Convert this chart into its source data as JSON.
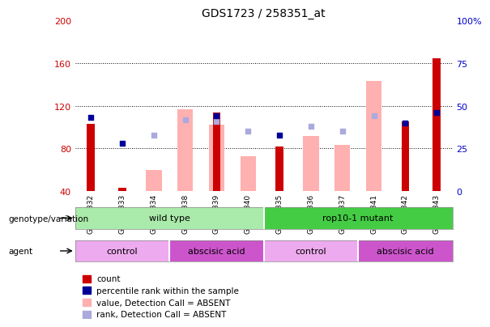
{
  "title": "GDS1723 / 258351_at",
  "samples": [
    "GSM78332",
    "GSM78333",
    "GSM78334",
    "GSM78338",
    "GSM78339",
    "GSM78340",
    "GSM78335",
    "GSM78336",
    "GSM78337",
    "GSM78341",
    "GSM78342",
    "GSM78343"
  ],
  "count": [
    103,
    43,
    null,
    null,
    114,
    null,
    82,
    null,
    null,
    null,
    105,
    165
  ],
  "percentile_rank": [
    43,
    28,
    null,
    null,
    44,
    null,
    33,
    null,
    null,
    null,
    40,
    46
  ],
  "absent_value": [
    null,
    null,
    60,
    117,
    102,
    73,
    null,
    92,
    83,
    143,
    null,
    null
  ],
  "absent_rank": [
    null,
    null,
    33,
    42,
    41,
    35,
    null,
    38,
    35,
    44,
    null,
    null
  ],
  "ylim_left": [
    40,
    200
  ],
  "ylim_right": [
    0,
    100
  ],
  "yticks_left": [
    40,
    80,
    120,
    160,
    200
  ],
  "yticks_right": [
    0,
    25,
    50,
    75,
    100
  ],
  "bar_color_count": "#cc0000",
  "bar_color_absent_value": "#ffb0b0",
  "dot_color_rank": "#000099",
  "dot_color_absent_rank": "#aaaadd",
  "ylabel_left_color": "#cc0000",
  "ylabel_right_color": "#0000cc",
  "genotype_groups": [
    {
      "label": "wild type",
      "start": 0,
      "end": 6,
      "color": "#aaeaaa"
    },
    {
      "label": "rop10-1 mutant",
      "start": 6,
      "end": 12,
      "color": "#44cc44"
    }
  ],
  "agent_groups": [
    {
      "label": "control",
      "start": 0,
      "end": 3,
      "color": "#eeaaee"
    },
    {
      "label": "abscisic acid",
      "start": 3,
      "end": 6,
      "color": "#cc55cc"
    },
    {
      "label": "control",
      "start": 6,
      "end": 9,
      "color": "#eeaaee"
    },
    {
      "label": "abscisic acid",
      "start": 9,
      "end": 12,
      "color": "#cc55cc"
    }
  ],
  "legend_labels": [
    "count",
    "percentile rank within the sample",
    "value, Detection Call = ABSENT",
    "rank, Detection Call = ABSENT"
  ],
  "legend_colors": [
    "#cc0000",
    "#000099",
    "#ffb0b0",
    "#aaaadd"
  ]
}
